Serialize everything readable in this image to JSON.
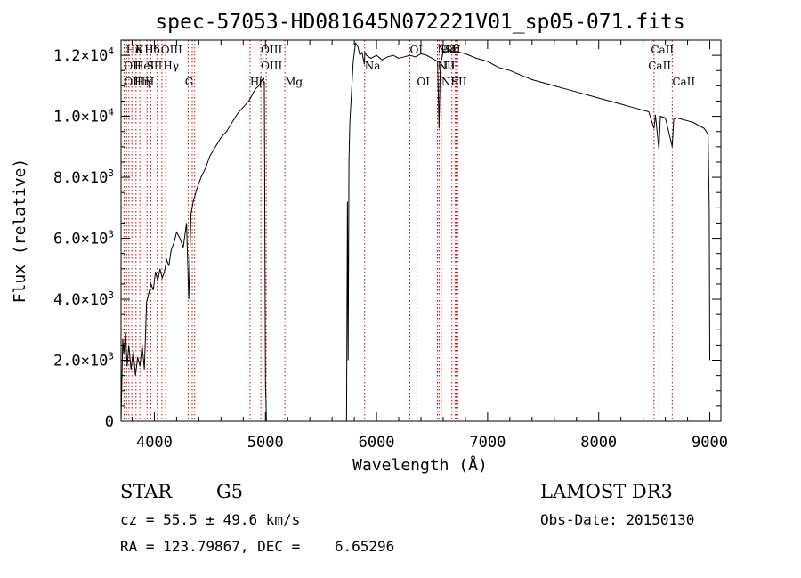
{
  "chart_data": {
    "type": "line",
    "title": "spec-57053-HD081645N072221V01_sp05-071.fits",
    "xlabel": "Wavelength (Å)",
    "ylabel": "Flux (relative)",
    "xlim": [
      3700,
      9100
    ],
    "ylim": [
      0,
      12500
    ],
    "x_ticks": [
      {
        "value": 4000,
        "label": "4000"
      },
      {
        "value": 5000,
        "label": "5000"
      },
      {
        "value": 6000,
        "label": "6000"
      },
      {
        "value": 7000,
        "label": "7000"
      },
      {
        "value": 8000,
        "label": "8000"
      },
      {
        "value": 9000,
        "label": "9000"
      }
    ],
    "y_ticks": [
      {
        "value": 0,
        "mant": "0",
        "exp": ""
      },
      {
        "value": 2000,
        "mant": "2.0×10",
        "exp": "3"
      },
      {
        "value": 4000,
        "mant": "4.0×10",
        "exp": "3"
      },
      {
        "value": 6000,
        "mant": "6.0×10",
        "exp": "3"
      },
      {
        "value": 8000,
        "mant": "8.0×10",
        "exp": "3"
      },
      {
        "value": 10000,
        "mant": "1.0×10",
        "exp": "4"
      },
      {
        "value": 12000,
        "mant": "1.2×10",
        "exp": "4"
      }
    ],
    "line_color": "#000000",
    "marker_color": "#cc0000",
    "series": [
      {
        "x": [
          3700,
          3715,
          3725,
          3740,
          3755,
          3770,
          3790,
          3810,
          3830,
          3850,
          3870,
          3890,
          3910,
          3930,
          3950,
          3970,
          3990,
          4010,
          4030,
          4050,
          4070,
          4090,
          4110,
          4130,
          4150,
          4180,
          4200,
          4230,
          4260,
          4290,
          4310,
          4330,
          4350,
          4380,
          4420,
          4460,
          4500,
          4550,
          4600,
          4650,
          4700,
          4750,
          4800,
          4850,
          4880,
          4910,
          4940,
          4970,
          4990,
          5000,
          5005,
          5008,
          5730,
          5738,
          5745,
          5752,
          5760,
          5775,
          5790,
          5810,
          5830,
          5850,
          5870,
          5890,
          5895,
          5910,
          5950,
          6000,
          6050,
          6100,
          6150,
          6200,
          6250,
          6300,
          6350,
          6400,
          6450,
          6500,
          6550,
          6563,
          6575,
          6600,
          6650,
          6700,
          6750,
          6800,
          6900,
          7000,
          7100,
          7200,
          7300,
          7400,
          7500,
          7600,
          7700,
          7800,
          7900,
          8000,
          8100,
          8200,
          8300,
          8400,
          8450,
          8498,
          8510,
          8542,
          8555,
          8600,
          8662,
          8675,
          8700,
          8750,
          8800,
          8850,
          8900,
          8950,
          8985,
          8995,
          9000
        ],
        "y": [
          0,
          2700,
          2200,
          2900,
          1800,
          2500,
          1700,
          2300,
          1500,
          2100,
          1800,
          2500,
          1700,
          3900,
          4200,
          4500,
          4300,
          4900,
          4600,
          5000,
          4700,
          4900,
          5300,
          5100,
          5600,
          5900,
          6200,
          6000,
          5700,
          6500,
          4000,
          6800,
          7200,
          7600,
          8000,
          8300,
          8700,
          9000,
          9300,
          9500,
          9800,
          10100,
          10300,
          10500,
          10700,
          10900,
          11000,
          11200,
          11100,
          1200,
          600,
          0,
          0,
          7200,
          2000,
          8500,
          9800,
          10800,
          11800,
          12400,
          12300,
          12000,
          12100,
          11700,
          12100,
          12000,
          11900,
          12000,
          11850,
          11950,
          12000,
          11900,
          11950,
          12000,
          11950,
          12050,
          12000,
          11900,
          11800,
          9600,
          11700,
          12100,
          12150,
          12100,
          12100,
          12050,
          11900,
          11800,
          11600,
          11500,
          11350,
          11200,
          11100,
          11000,
          10900,
          10800,
          10700,
          10600,
          10500,
          10400,
          10300,
          10200,
          10150,
          9600,
          10050,
          8900,
          10000,
          9950,
          9000,
          9900,
          9950,
          9900,
          9850,
          9800,
          9700,
          9600,
          9400,
          7000,
          2000
        ]
      }
    ],
    "annotations": [
      {
        "text": "Hδ",
        "x": 3745,
        "row": 1
      },
      {
        "text": "K",
        "x": 3830,
        "row": 1
      },
      {
        "text": "Hδ",
        "x": 3910,
        "row": 1
      },
      {
        "text": "OIII",
        "x": 4059,
        "row": 1
      },
      {
        "text": "OIII",
        "x": 4959,
        "row": 1
      },
      {
        "text": "OI",
        "x": 6300,
        "row": 1
      },
      {
        "text": "NII",
        "x": 6548,
        "row": 1
      },
      {
        "text": "Hα",
        "x": 6577,
        "row": 1
      },
      {
        "text": "SII",
        "x": 6616,
        "row": 1
      },
      {
        "text": "CaII",
        "x": 8470,
        "row": 1
      },
      {
        "text": "OII",
        "x": 3727,
        "row": 2
      },
      {
        "text": "HeI",
        "x": 3820,
        "row": 2
      },
      {
        "text": "SII",
        "x": 3930,
        "row": 2
      },
      {
        "text": "Hγ",
        "x": 4080,
        "row": 2
      },
      {
        "text": "OIII",
        "x": 4959,
        "row": 2
      },
      {
        "text": "Na",
        "x": 5893,
        "row": 2
      },
      {
        "text": "NII",
        "x": 6548,
        "row": 2
      },
      {
        "text": "Li",
        "x": 6606,
        "row": 2
      },
      {
        "text": "CaII",
        "x": 8445,
        "row": 2
      },
      {
        "text": "OIII",
        "x": 3727,
        "row": 3
      },
      {
        "text": "Hη",
        "x": 3820,
        "row": 3
      },
      {
        "text": "H",
        "x": 3915,
        "row": 3
      },
      {
        "text": "G",
        "x": 4275,
        "row": 3
      },
      {
        "text": "Hβ",
        "x": 4861,
        "row": 3
      },
      {
        "text": "Mg",
        "x": 5175,
        "row": 3
      },
      {
        "text": "OI",
        "x": 6363,
        "row": 3
      },
      {
        "text": "NII",
        "x": 6583,
        "row": 3
      },
      {
        "text": "SII",
        "x": 6671,
        "row": 3
      },
      {
        "text": "CaII",
        "x": 8662,
        "row": 3
      }
    ],
    "marker_lines": [
      3727,
      3750,
      3771,
      3798,
      3835,
      3869,
      3889,
      3934,
      3968,
      4026,
      4068,
      4102,
      4304,
      4341,
      4363,
      4861,
      4959,
      5007,
      5175,
      5893,
      6300,
      6363,
      6548,
      6563,
      6583,
      6678,
      6707,
      6717,
      6731,
      8498,
      8542,
      8662
    ]
  },
  "info": {
    "class_label": "STAR",
    "subclass": "G5",
    "survey": "LAMOST DR3",
    "cz": "cz = 55.5 ± 49.6 km/s",
    "obs_date": "Obs-Date: 20150130",
    "radec": "RA = 123.79867, DEC =    6.65296"
  }
}
